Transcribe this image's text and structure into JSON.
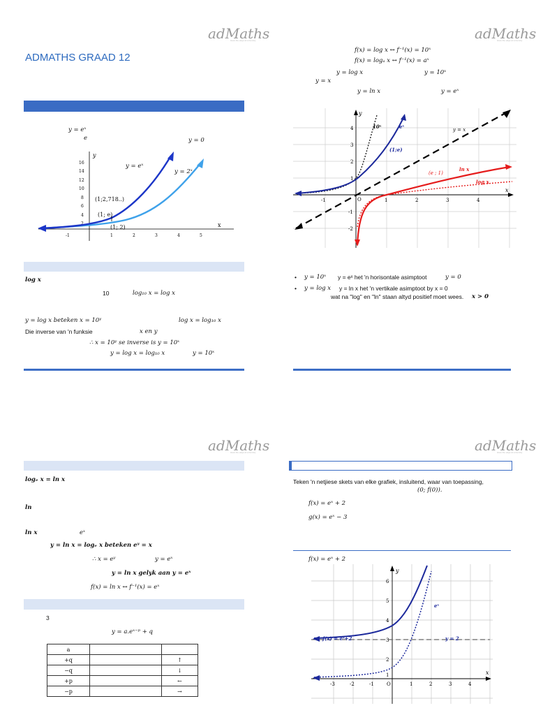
{
  "logo": {
    "brand": "adMaths",
    "tagline": "Have the edge at university"
  },
  "slide1": {
    "title": "ADMATHS GRAAD 12",
    "graph_title1": "y = eˣ",
    "graph_title2": "e",
    "lbl_y0": "y = 0",
    "lbl_ex": "y = eˣ",
    "lbl_2x": "y = 2ˣ",
    "pt1": "(1;2,718..)",
    "pt2": "(1; e)",
    "pt3": "(1; 2)",
    "axis_x": "x",
    "axis_y": "y",
    "yticks": [
      "2",
      "4",
      "6",
      "8",
      "10",
      "12",
      "14",
      "16"
    ],
    "xticks": [
      "-1",
      "1",
      "2",
      "3",
      "4",
      "5"
    ],
    "log_head": "log x",
    "line1_a": "10",
    "line1_b": "log₁₀ x = log x",
    "line2_a": "y = log x  beteken  x = 10ʸ",
    "line2_b": "log x = log₁₀ x",
    "line3_a": "Die inverse van 'n funksie",
    "line3_b": "x en y",
    "line4": "∴ x = 10ʸ se inverse is  y = 10ˣ",
    "line5_a": "y = log x = log₁₀ x",
    "line5_b": "y = 10ˣ"
  },
  "slide2": {
    "eq1": "f(x) = log x   ↔   f⁻¹(x) = 10ˣ",
    "eq2": "f(x) = logₐ x   ↔   f⁻¹(x) = aˣ",
    "eq3a": "y = log x",
    "eq3b": "y = 10ˣ",
    "eq4": "y = x",
    "eq5a": "y = ln x",
    "eq5b": "y = eˣ",
    "lbl_10x": "10ˣ",
    "lbl_ex": "eˣ",
    "lbl_yx": "y = x",
    "lbl_1e": "(1;e)",
    "lbl_e1": "(e ; 1)",
    "lbl_lnx": "ln x",
    "lbl_logx": "log x",
    "axis_x": "x",
    "axis_y": "y",
    "origin": "O",
    "yticks": [
      "4",
      "3",
      "2",
      "1",
      "-1",
      "-2"
    ],
    "xticks": [
      "-1",
      "1",
      "2",
      "3",
      "4"
    ],
    "bullet1_a": "y = 10ˣ",
    "bullet1_b": "y = eˣ het 'n horisontale asimptoot",
    "bullet1_c": "y = 0",
    "bullet2_a": "y = log x",
    "bullet2_b": "y = ln x het 'n vertikale asimptoot by x = 0",
    "bullet2_c": "wat na \"log\" en \"ln\" staan altyd positief moet wees.",
    "bullet2_d": "x > 0"
  },
  "slide3": {
    "head1": "logₑ x = ln x",
    "head2": "ln",
    "l1a": "ln x",
    "l1b": "eˣ",
    "l2": "y = ln x = logₑ x  beteken eʸ = x",
    "l3a": "∴ x = eʸ",
    "l3b": "y = eˣ",
    "l4": "y = ln x gelyk aan  y = eˣ",
    "l5": "f(x) = ln x   ↔   f⁻¹(x) = eˣ",
    "num": "3",
    "formula": "y = a.eˣ⁻ᵖ + q",
    "table": [
      [
        "a",
        "",
        ""
      ],
      [
        "+q",
        "",
        "↑"
      ],
      [
        "−q",
        "",
        "↓"
      ],
      [
        "+p",
        "",
        "←"
      ],
      [
        "−p",
        "",
        "→"
      ]
    ]
  },
  "slide4": {
    "intro1": "Teken 'n netjiese skets van elke grafiek, insluitend, waar van toepassing,",
    "intro2": "(0; f(0)).",
    "f": "f(x) = eˣ + 2",
    "g": "g(x) =  eˣ − 3",
    "graph_title": "f(x) = eˣ + 2",
    "lbl_f": "f(x) = eˣ+2",
    "lbl_y2": "y = 2",
    "lbl_ex": "eˣ",
    "axis_x": "x",
    "axis_y": "y",
    "origin": "O",
    "yticks": [
      "6",
      "5",
      "4",
      "3",
      "2",
      "1"
    ],
    "xticks": [
      "-3",
      "-2",
      "-1",
      "1",
      "2",
      "3",
      "4"
    ]
  }
}
